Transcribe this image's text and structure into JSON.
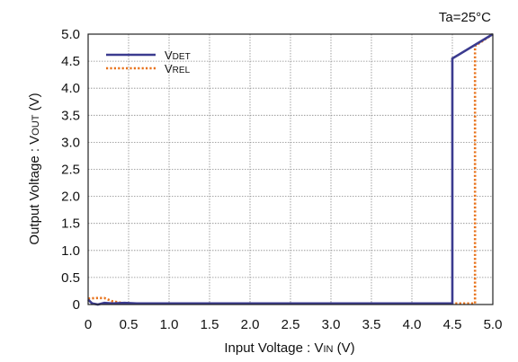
{
  "chart_data": {
    "type": "line",
    "annotation": "Ta=25°C",
    "xlabel": {
      "main": "Input Voltage : V",
      "sub": "IN",
      "unit": " (V)"
    },
    "ylabel": {
      "main": "Output Voltage : V",
      "sub": "OUT",
      "unit": " (V)"
    },
    "xlim": [
      0,
      5.0
    ],
    "ylim": [
      0,
      5.0
    ],
    "xticks": [
      "0",
      "0.5",
      "1.0",
      "1.5",
      "2.0",
      "2.5",
      "3.0",
      "3.5",
      "4.0",
      "4.5",
      "5.0"
    ],
    "yticks": [
      "0",
      "0.5",
      "1.0",
      "1.5",
      "2.0",
      "2.5",
      "3.0",
      "3.5",
      "4.0",
      "4.5",
      "5.0"
    ],
    "grid": true,
    "legend_position": "top-left",
    "series": [
      {
        "name": "VDET",
        "name_main": "V",
        "name_sub": "DET",
        "color": "#3b3b8f",
        "style": "solid",
        "points": [
          [
            0,
            0.09
          ],
          [
            0.05,
            0.02
          ],
          [
            0.12,
            0.0
          ],
          [
            0.2,
            0.03
          ],
          [
            0.3,
            0.02
          ],
          [
            0.45,
            0.03
          ],
          [
            0.6,
            0.02
          ],
          [
            4.5,
            0.02
          ],
          [
            4.5,
            4.55
          ],
          [
            5.0,
            5.0
          ]
        ]
      },
      {
        "name": "VREL",
        "name_main": "V",
        "name_sub": "REL",
        "color": "#e8731c",
        "style": "dotted",
        "points": [
          [
            0,
            0.11
          ],
          [
            0.1,
            0.12
          ],
          [
            0.2,
            0.12
          ],
          [
            0.3,
            0.06
          ],
          [
            0.45,
            0.02
          ],
          [
            4.78,
            0.02
          ],
          [
            4.78,
            4.78
          ],
          [
            5.0,
            5.0
          ]
        ]
      }
    ]
  }
}
